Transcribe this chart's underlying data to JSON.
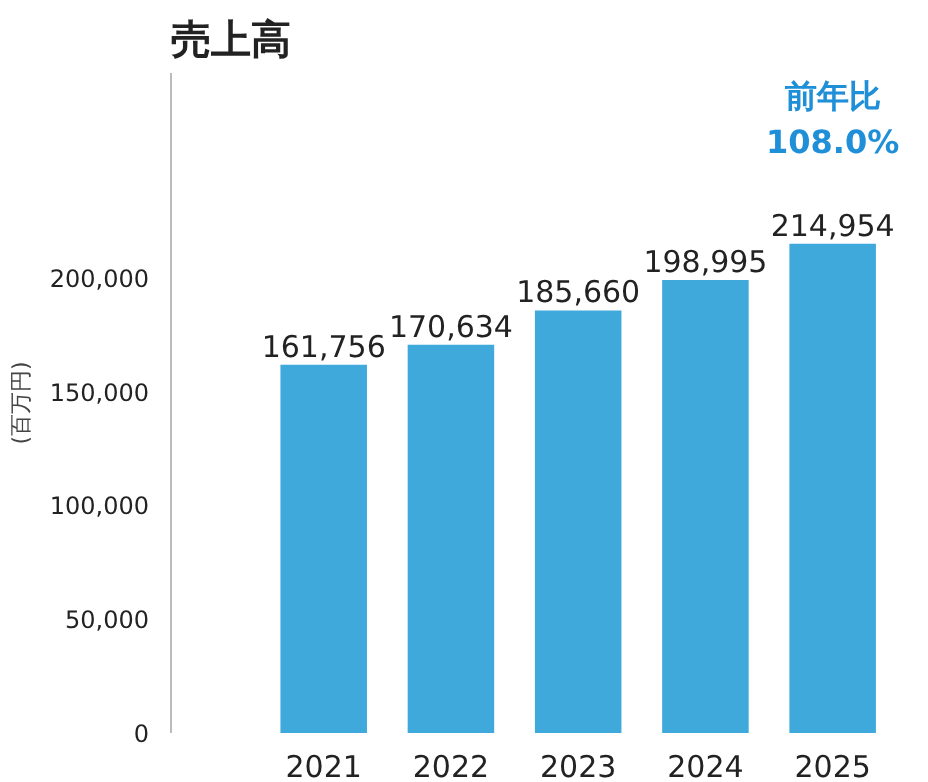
{
  "chart_data": {
    "type": "bar",
    "title": "売上高",
    "ylabel": "(百万円)",
    "categories": [
      "2021",
      "2022",
      "2023",
      "2024",
      "2025"
    ],
    "values": [
      161756,
      170634,
      185660,
      198995,
      214954
    ],
    "value_labels": [
      "161,756",
      "170,634",
      "185,660",
      "198,995",
      "214,954"
    ],
    "color": "#3fa9dc",
    "ylim": [
      0,
      290000
    ],
    "yticks": [
      {
        "value": 0,
        "label": "0"
      },
      {
        "value": 50000,
        "label": "50,000"
      },
      {
        "value": 100000,
        "label": "100,000"
      },
      {
        "value": 150000,
        "label": "150,000"
      },
      {
        "value": 200000,
        "label": "200,000"
      }
    ],
    "grid": false,
    "annotations": [
      "前年比\n108.0%"
    ]
  }
}
